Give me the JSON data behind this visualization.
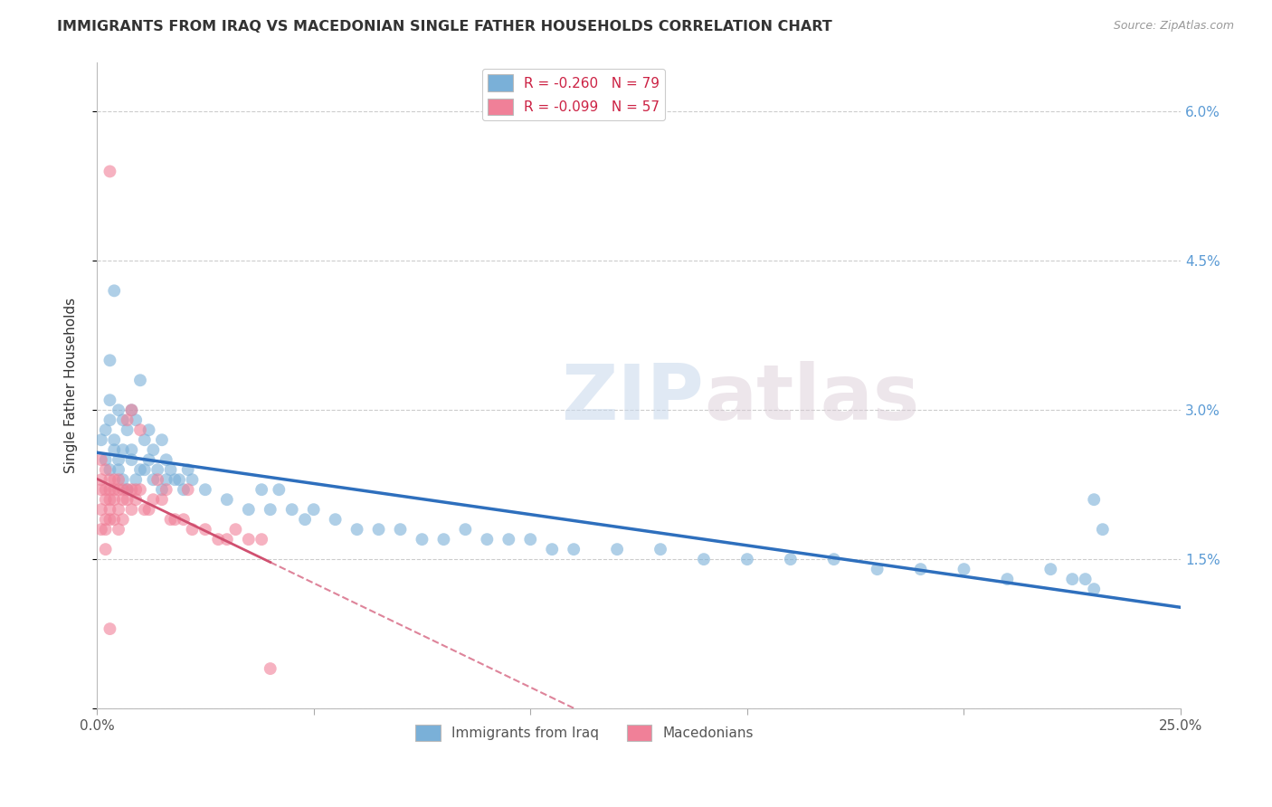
{
  "title": "IMMIGRANTS FROM IRAQ VS MACEDONIAN SINGLE FATHER HOUSEHOLDS CORRELATION CHART",
  "source": "Source: ZipAtlas.com",
  "ylabel": "Single Father Households",
  "xlim": [
    0.0,
    0.25
  ],
  "ylim": [
    0.0,
    0.065
  ],
  "xtick_positions": [
    0.0,
    0.05,
    0.1,
    0.15,
    0.2,
    0.25
  ],
  "xticklabels": [
    "0.0%",
    "",
    "",
    "",
    "",
    "25.0%"
  ],
  "ytick_positions": [
    0.0,
    0.015,
    0.03,
    0.045,
    0.06
  ],
  "yticklabels_right": [
    "",
    "1.5%",
    "3.0%",
    "4.5%",
    "6.0%"
  ],
  "legend_label_iraq": "R = -0.260   N = 79",
  "legend_label_mac": "R = -0.099   N = 57",
  "iraq_color": "#7ab0d8",
  "macedonian_color": "#f08098",
  "iraq_line_color": "#2e6fbd",
  "macedonian_line_color": "#d05070",
  "watermark_zip": "ZIP",
  "watermark_atlas": "atlas",
  "bottom_legend_iraq": "Immigrants from Iraq",
  "bottom_legend_mac": "Macedonians",
  "iraq_x": [
    0.001,
    0.002,
    0.002,
    0.003,
    0.003,
    0.003,
    0.003,
    0.004,
    0.004,
    0.004,
    0.005,
    0.005,
    0.005,
    0.006,
    0.006,
    0.006,
    0.007,
    0.007,
    0.008,
    0.008,
    0.008,
    0.009,
    0.009,
    0.01,
    0.01,
    0.011,
    0.011,
    0.012,
    0.012,
    0.013,
    0.013,
    0.014,
    0.015,
    0.015,
    0.016,
    0.016,
    0.017,
    0.018,
    0.019,
    0.02,
    0.021,
    0.022,
    0.025,
    0.03,
    0.035,
    0.038,
    0.04,
    0.042,
    0.045,
    0.048,
    0.05,
    0.055,
    0.06,
    0.065,
    0.07,
    0.075,
    0.08,
    0.085,
    0.09,
    0.095,
    0.1,
    0.105,
    0.11,
    0.12,
    0.13,
    0.14,
    0.15,
    0.16,
    0.17,
    0.18,
    0.19,
    0.2,
    0.21,
    0.22,
    0.225,
    0.228,
    0.23,
    0.23,
    0.232
  ],
  "iraq_y": [
    0.027,
    0.025,
    0.028,
    0.024,
    0.031,
    0.035,
    0.029,
    0.027,
    0.026,
    0.042,
    0.025,
    0.024,
    0.03,
    0.023,
    0.026,
    0.029,
    0.022,
    0.028,
    0.026,
    0.025,
    0.03,
    0.023,
    0.029,
    0.024,
    0.033,
    0.024,
    0.027,
    0.025,
    0.028,
    0.023,
    0.026,
    0.024,
    0.022,
    0.027,
    0.023,
    0.025,
    0.024,
    0.023,
    0.023,
    0.022,
    0.024,
    0.023,
    0.022,
    0.021,
    0.02,
    0.022,
    0.02,
    0.022,
    0.02,
    0.019,
    0.02,
    0.019,
    0.018,
    0.018,
    0.018,
    0.017,
    0.017,
    0.018,
    0.017,
    0.017,
    0.017,
    0.016,
    0.016,
    0.016,
    0.016,
    0.015,
    0.015,
    0.015,
    0.015,
    0.014,
    0.014,
    0.014,
    0.013,
    0.014,
    0.013,
    0.013,
    0.021,
    0.012,
    0.018
  ],
  "macedonian_x": [
    0.001,
    0.001,
    0.001,
    0.001,
    0.001,
    0.002,
    0.002,
    0.002,
    0.002,
    0.002,
    0.002,
    0.003,
    0.003,
    0.003,
    0.003,
    0.003,
    0.003,
    0.004,
    0.004,
    0.004,
    0.004,
    0.005,
    0.005,
    0.005,
    0.005,
    0.006,
    0.006,
    0.006,
    0.007,
    0.007,
    0.007,
    0.008,
    0.008,
    0.008,
    0.009,
    0.009,
    0.01,
    0.01,
    0.011,
    0.012,
    0.013,
    0.014,
    0.015,
    0.016,
    0.017,
    0.018,
    0.02,
    0.021,
    0.022,
    0.025,
    0.028,
    0.03,
    0.032,
    0.035,
    0.038,
    0.003,
    0.04
  ],
  "macedonian_y": [
    0.025,
    0.023,
    0.022,
    0.02,
    0.018,
    0.024,
    0.022,
    0.021,
    0.019,
    0.018,
    0.016,
    0.023,
    0.022,
    0.021,
    0.02,
    0.019,
    0.054,
    0.023,
    0.022,
    0.021,
    0.019,
    0.023,
    0.022,
    0.02,
    0.018,
    0.022,
    0.021,
    0.019,
    0.022,
    0.021,
    0.029,
    0.022,
    0.02,
    0.03,
    0.022,
    0.021,
    0.022,
    0.028,
    0.02,
    0.02,
    0.021,
    0.023,
    0.021,
    0.022,
    0.019,
    0.019,
    0.019,
    0.022,
    0.018,
    0.018,
    0.017,
    0.017,
    0.018,
    0.017,
    0.017,
    0.008,
    0.004
  ]
}
